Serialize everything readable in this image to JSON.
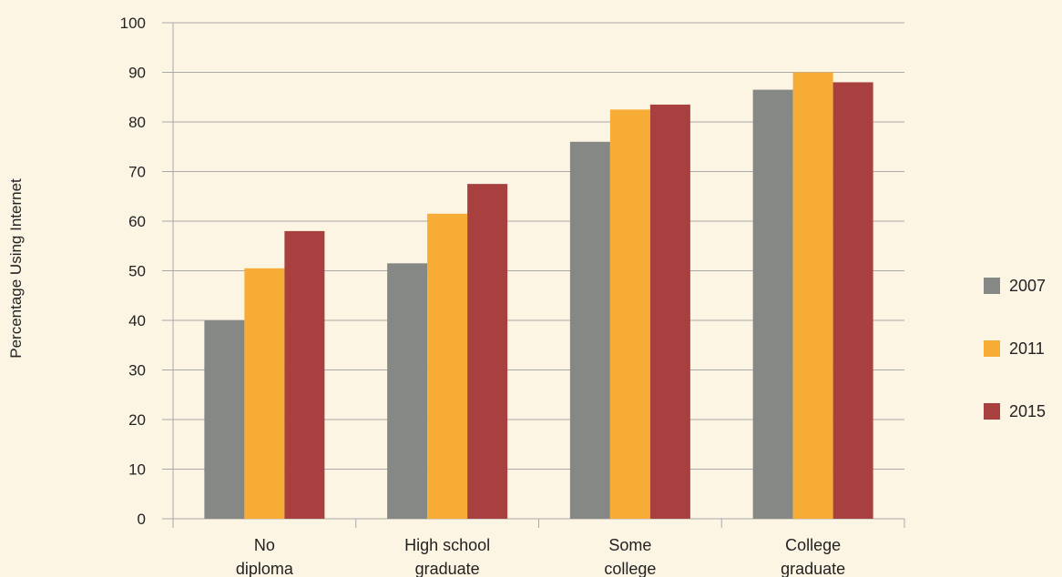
{
  "chart_data": {
    "type": "bar",
    "ylabel": "Percentage Using Internet",
    "xlabel": "",
    "ylim": [
      0,
      100
    ],
    "yticks": [
      0,
      10,
      20,
      30,
      40,
      50,
      60,
      70,
      80,
      90,
      100
    ],
    "grid": true,
    "legend_position": "right",
    "categories": [
      [
        "No",
        "diploma"
      ],
      [
        "High school",
        "graduate"
      ],
      [
        "Some",
        "college"
      ],
      [
        "College",
        "graduate"
      ]
    ],
    "series": [
      {
        "name": "2007",
        "color": "#868886",
        "values": [
          40,
          51.5,
          76,
          86.5
        ]
      },
      {
        "name": "2011",
        "color": "#f7ac35",
        "values": [
          50.5,
          61.5,
          82.5,
          90
        ]
      },
      {
        "name": "2015",
        "color": "#a8403f",
        "values": [
          58,
          67.5,
          83.5,
          88
        ]
      }
    ]
  }
}
